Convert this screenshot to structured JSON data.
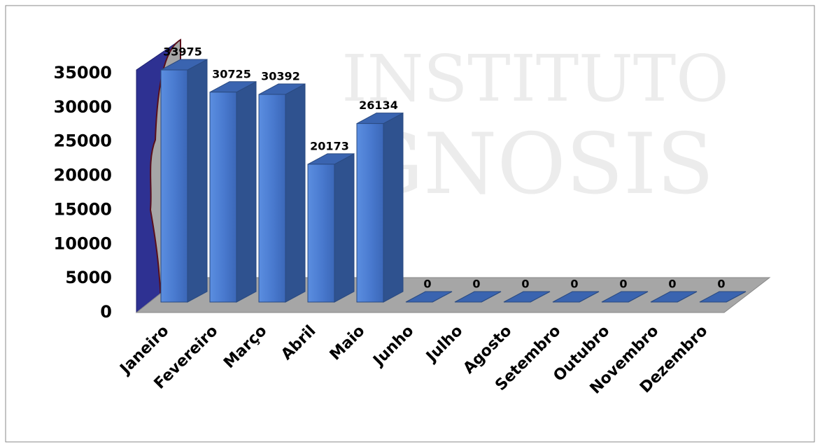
{
  "chart_data": {
    "type": "bar3d",
    "watermark": [
      "INSTITUTO",
      "GNOSIS"
    ],
    "categories": [
      "Janeiro",
      "Fevereiro",
      "Março",
      "Abril",
      "Maio",
      "Junho",
      "Julho",
      "Agosto",
      "Setembro",
      "Outubro",
      "Novembro",
      "Dezembro"
    ],
    "values": [
      33975,
      30725,
      30392,
      20173,
      26134,
      0,
      0,
      0,
      0,
      0,
      0,
      0
    ],
    "color": "#4472c4",
    "ylim": [
      0,
      35000
    ],
    "yticks": [
      0,
      5000,
      10000,
      15000,
      20000,
      25000,
      30000,
      35000
    ]
  }
}
